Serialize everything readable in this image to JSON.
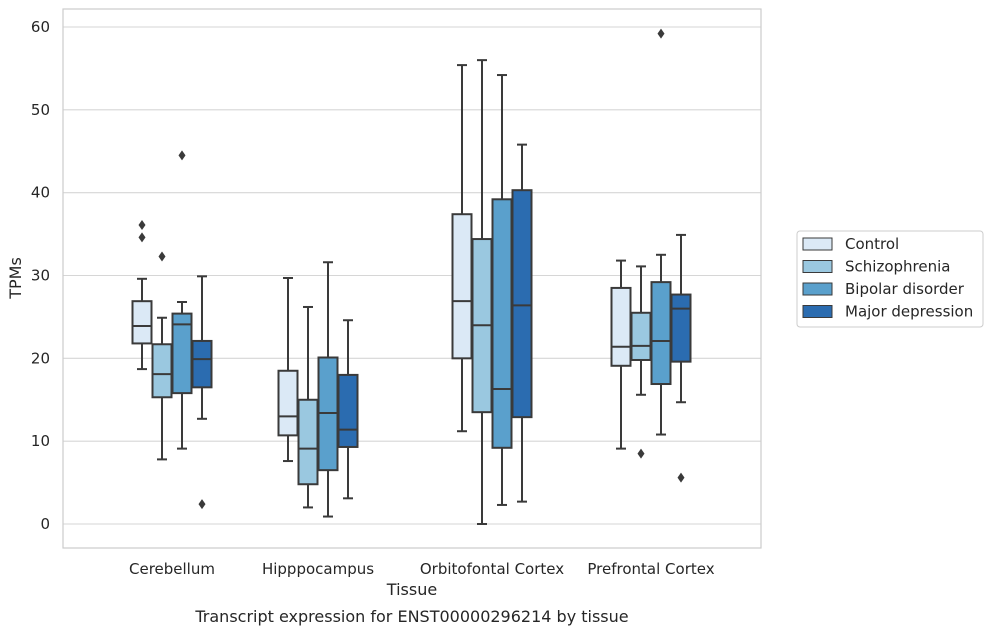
{
  "chart_data": {
    "type": "boxplot",
    "xlabel": "Tissue",
    "ylabel": "TPMs",
    "caption": "Transcript expression for ENST00000296214 by tissue",
    "ylim": [
      -3,
      62
    ],
    "yticks": [
      0,
      10,
      20,
      30,
      40,
      50,
      60
    ],
    "grid": "horizontal",
    "legend_position": "right",
    "categories": [
      "Cerebellum",
      "Hipppocampus",
      "Orbitofontal Cortex",
      "Prefrontal Cortex"
    ],
    "series": [
      {
        "name": "Control",
        "color": "#dbe9f6",
        "boxes": [
          {
            "whislo": 18.7,
            "q1": 21.8,
            "med": 23.9,
            "q3": 26.9,
            "whishi": 29.6,
            "fliers": [
              36.1,
              34.6
            ]
          },
          {
            "whislo": 7.6,
            "q1": 10.7,
            "med": 13.0,
            "q3": 18.5,
            "whishi": 29.7,
            "fliers": []
          },
          {
            "whislo": 11.2,
            "q1": 20.0,
            "med": 26.9,
            "q3": 37.4,
            "whishi": 55.4,
            "fliers": []
          },
          {
            "whislo": 9.1,
            "q1": 19.1,
            "med": 21.4,
            "q3": 28.5,
            "whishi": 31.8,
            "fliers": []
          }
        ]
      },
      {
        "name": "Schizophrenia",
        "color": "#9ac8e0",
        "boxes": [
          {
            "whislo": 7.8,
            "q1": 15.3,
            "med": 18.1,
            "q3": 21.7,
            "whishi": 24.9,
            "fliers": [
              32.3
            ]
          },
          {
            "whislo": 2.0,
            "q1": 4.8,
            "med": 9.1,
            "q3": 15.0,
            "whishi": 26.2,
            "fliers": []
          },
          {
            "whislo": 0.0,
            "q1": 13.5,
            "med": 24.0,
            "q3": 34.4,
            "whishi": 56.0,
            "fliers": []
          },
          {
            "whislo": 15.6,
            "q1": 19.8,
            "med": 21.5,
            "q3": 25.5,
            "whishi": 31.1,
            "fliers": [
              8.5
            ]
          }
        ]
      },
      {
        "name": "Bipolar disorder",
        "color": "#5aa0cc",
        "boxes": [
          {
            "whislo": 9.1,
            "q1": 15.8,
            "med": 24.1,
            "q3": 25.4,
            "whishi": 26.8,
            "fliers": [
              44.5
            ]
          },
          {
            "whislo": 0.9,
            "q1": 6.5,
            "med": 13.4,
            "q3": 20.1,
            "whishi": 31.6,
            "fliers": []
          },
          {
            "whislo": 2.3,
            "q1": 9.2,
            "med": 16.3,
            "q3": 39.2,
            "whishi": 54.2,
            "fliers": []
          },
          {
            "whislo": 10.8,
            "q1": 16.9,
            "med": 22.1,
            "q3": 29.2,
            "whishi": 32.5,
            "fliers": [
              59.2
            ]
          }
        ]
      },
      {
        "name": "Major depression",
        "color": "#2b6cb0",
        "boxes": [
          {
            "whislo": 12.7,
            "q1": 16.5,
            "med": 19.9,
            "q3": 22.1,
            "whishi": 29.9,
            "fliers": [
              2.4
            ]
          },
          {
            "whislo": 3.1,
            "q1": 9.3,
            "med": 11.4,
            "q3": 18.0,
            "whishi": 24.6,
            "fliers": []
          },
          {
            "whislo": 2.7,
            "q1": 12.9,
            "med": 26.4,
            "q3": 40.3,
            "whishi": 45.8,
            "fliers": []
          },
          {
            "whislo": 14.7,
            "q1": 19.6,
            "med": 26.0,
            "q3": 27.7,
            "whishi": 34.9,
            "fliers": [
              5.6
            ]
          }
        ]
      }
    ]
  }
}
